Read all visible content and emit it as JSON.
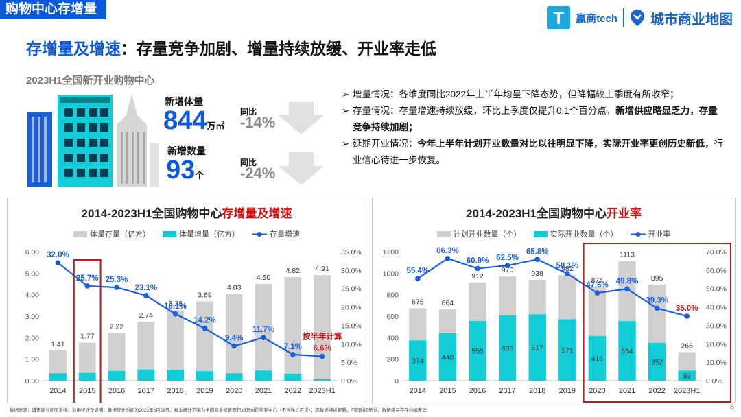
{
  "header": {
    "tag": "购物中心存增量",
    "logo_left": "赢商tech",
    "logo_right": "城市商业地图",
    "logo_t": "T"
  },
  "title": {
    "highlight": "存增量及增速",
    "rest": "：存量竞争加剧、增量持续放缓、开业率走低"
  },
  "subtitle": "2023H1全国新开业购物中心",
  "kpi": {
    "vol_label": "新增体量",
    "vol_value": "844",
    "vol_unit": "万㎡",
    "vol_yoy_label": "同比",
    "vol_yoy": "-14%",
    "count_label": "新增数量",
    "count_value": "93",
    "count_unit": "个",
    "count_yoy_label": "同比",
    "count_yoy": "-24%"
  },
  "bullets": [
    {
      "mark": "➢",
      "parts": [
        {
          "t": "增量情况：各维度同比2022年上半年均呈下降态势，但降幅较上季度有所收窄；",
          "b": false
        }
      ]
    },
    {
      "mark": "➢",
      "parts": [
        {
          "t": "存量情况：存量增速持续放缓，环比上季度仅提升0.1个百分点，",
          "b": false
        },
        {
          "t": "新增供应略显乏力，存量竞争持续加剧；",
          "b": true
        }
      ]
    },
    {
      "mark": "➢",
      "parts": [
        {
          "t": "延期开业情况：",
          "b": false
        },
        {
          "t": "今年上半年计划开业数量对比以往明显下降，实际开业率更创历史新低，",
          "b": true
        },
        {
          "t": "行业信心待进一步恢复。",
          "b": false
        }
      ]
    }
  ],
  "footer": "数据来源：城市商业地图系统。数据统计及说明：数据统计时间为2023年6月28日。样本统计范围为全国商业建筑面积≥3万㎡的购物中心（不含独立百货）；因数据持续更新，不同时间统计，数据将会存在小幅差异",
  "page_number": "8",
  "chart_data": [
    {
      "type": "bar",
      "title_prefix": "2014-2023H1全国购物中心",
      "title_highlight": "存增量及增速",
      "legend": [
        "体量存量（亿方）",
        "体量增量（亿方）",
        "存量增速"
      ],
      "categories": [
        "2014",
        "2015",
        "2016",
        "2017",
        "2018",
        "2019",
        "2020",
        "2021",
        "2022",
        "2023H1"
      ],
      "series": [
        {
          "name": "体量存量（亿方）",
          "values": [
            1.41,
            1.77,
            2.22,
            2.74,
            3.28,
            3.69,
            4.03,
            4.5,
            4.82,
            4.91
          ],
          "labels": [
            "1.41",
            "1.77",
            "2.22",
            "2.74",
            "3.28",
            "3.69",
            "4.03",
            "4.50",
            "4.82",
            "4.91"
          ]
        },
        {
          "name": "体量增量（亿方）",
          "values": [
            0.34,
            0.36,
            0.45,
            0.52,
            0.5,
            0.44,
            0.34,
            0.47,
            0.32,
            0.08
          ]
        },
        {
          "name": "存量增速",
          "values": [
            32.0,
            25.7,
            25.3,
            23.1,
            18.1,
            14.2,
            9.4,
            11.7,
            7.1,
            6.6
          ],
          "labels": [
            "32.0%",
            "25.7%",
            "25.3%",
            "23.1%",
            "18.1%",
            "14.2%",
            "9.4%",
            "11.7%",
            "7.1%",
            "6.6%"
          ]
        }
      ],
      "ylim": [
        0,
        6
      ],
      "yticks": [
        "0.00",
        "1.00",
        "2.00",
        "3.00",
        "4.00",
        "5.00",
        "6.00"
      ],
      "y2lim": [
        0,
        35
      ],
      "y2ticks": [
        "0.0%",
        "5.0%",
        "10.0%",
        "15.0%",
        "20.0%",
        "25.0%",
        "30.0%",
        "35.0%"
      ],
      "annotation": "按半年计算",
      "highlight_categories": [
        "2015"
      ],
      "colors": {
        "stock": "#d0d0d0",
        "incr": "#12cdd6",
        "line": "#1a5ee0",
        "label": "#1a5ee0",
        "anno": "#d01010",
        "box": "#c01818"
      }
    },
    {
      "type": "bar",
      "title_prefix": "2014-2023H1全国购物中心",
      "title_highlight": "开业率",
      "legend": [
        "计划开业数量（个）",
        "实际开业数量（个）",
        "开业率"
      ],
      "categories": [
        "2014",
        "2015",
        "2016",
        "2017",
        "2018",
        "2019",
        "2020",
        "2021",
        "2022",
        "2023H1"
      ],
      "series": [
        {
          "name": "计划开业数量（个）",
          "values": [
            675,
            664,
            912,
            970,
            938,
            982,
            874,
            1113,
            895,
            266
          ],
          "labels": [
            "675",
            "664",
            "912",
            "970",
            "938",
            "982",
            "874",
            "1113",
            "895",
            "266"
          ]
        },
        {
          "name": "实际开业数量（个）",
          "values": [
            374,
            440,
            555,
            606,
            617,
            571,
            416,
            554,
            352,
            93
          ],
          "labels": [
            "374",
            "440",
            "555",
            "606",
            "617",
            "571",
            "416",
            "554",
            "352",
            "93"
          ]
        },
        {
          "name": "开业率",
          "values": [
            55.4,
            66.3,
            60.9,
            62.5,
            65.8,
            58.1,
            47.6,
            49.8,
            39.3,
            35.0
          ],
          "labels": [
            "55.4%",
            "66.3%",
            "60.9%",
            "62.5%",
            "65.8%",
            "58.1%",
            "47.6%",
            "49.8%",
            "39.3%",
            "35.0%"
          ]
        }
      ],
      "ylim": [
        0,
        1200
      ],
      "yticks": [
        "0",
        "200",
        "400",
        "600",
        "800",
        "1000",
        "1200"
      ],
      "y2lim": [
        0,
        70
      ],
      "y2ticks": [
        "0.0%",
        "10.0%",
        "20.0%",
        "30.0%",
        "40.0%",
        "50.0%",
        "60.0%",
        "70.0%"
      ],
      "highlight_categories": [
        "2020",
        "2021",
        "2022",
        "2023H1"
      ],
      "colors": {
        "stock": "#d0d0d0",
        "incr": "#12cdd6",
        "line": "#1a5ee0",
        "label": "#1a5ee0",
        "anno": "#d01010",
        "box": "#c01818"
      }
    }
  ]
}
